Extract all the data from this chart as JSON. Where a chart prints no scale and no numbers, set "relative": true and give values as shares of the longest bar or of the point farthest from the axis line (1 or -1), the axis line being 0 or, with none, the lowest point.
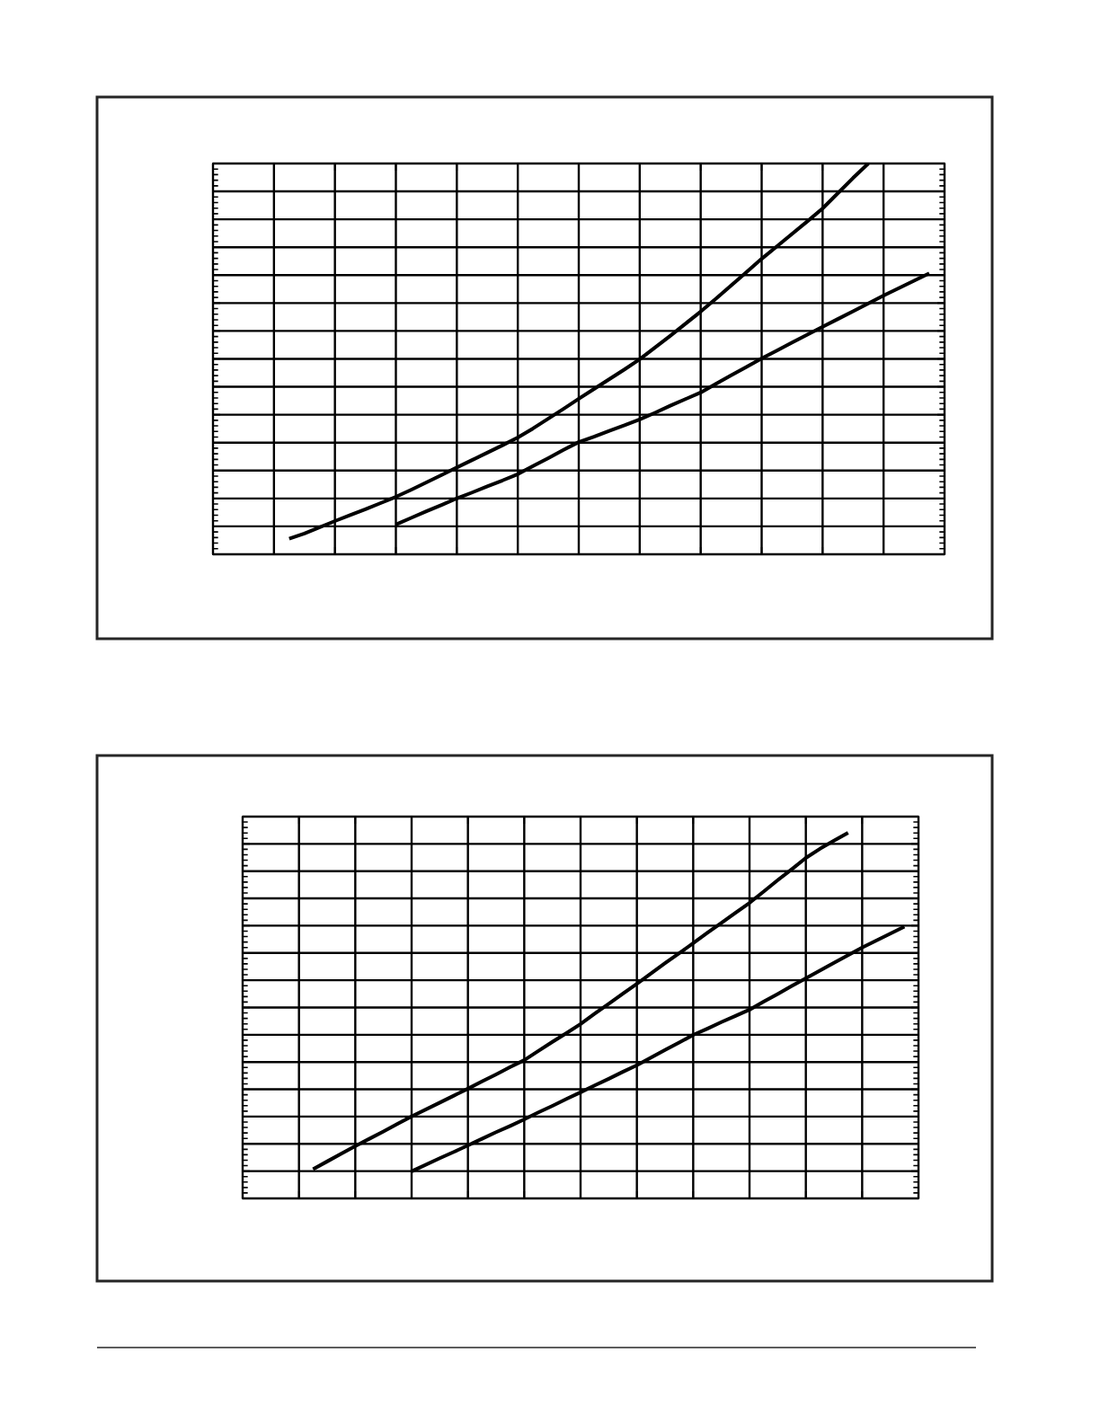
{
  "chart_data": [
    {
      "type": "line",
      "relative": true,
      "grid": true,
      "categories": [
        null,
        null,
        null,
        null,
        null,
        null,
        null,
        null,
        null,
        null,
        null,
        null,
        null,
        null,
        null,
        null,
        null,
        null,
        null,
        null,
        null,
        null,
        null,
        null,
        null,
        null,
        null,
        null,
        null,
        null,
        null,
        null,
        null,
        null,
        null,
        null,
        null,
        null,
        null,
        null,
        null,
        null,
        null,
        null,
        null,
        null,
        null,
        null,
        null
      ],
      "series": [
        {
          "color": "#000000",
          "values": [
            null,
            null,
            null,
            null,
            null,
            0.04,
            0.053,
            0.069,
            0.085,
            0.1,
            0.115,
            0.131,
            0.147,
            0.165,
            0.184,
            0.203,
            0.222,
            0.241,
            0.26,
            0.279,
            0.299,
            0.322,
            0.347,
            0.372,
            0.398,
            0.423,
            0.448,
            0.473,
            0.499,
            0.529,
            0.559,
            0.59,
            0.621,
            0.654,
            0.688,
            0.722,
            0.756,
            0.788,
            0.82,
            0.852,
            0.885,
            0.924,
            0.963,
            1.0,
            null,
            null,
            null,
            null,
            null
          ]
        },
        {
          "color": "#000000",
          "values": [
            null,
            null,
            null,
            null,
            null,
            null,
            null,
            null,
            null,
            null,
            null,
            null,
            0.076,
            0.093,
            0.11,
            0.126,
            0.143,
            0.158,
            0.174,
            0.189,
            0.205,
            0.226,
            0.246,
            0.267,
            0.287,
            0.301,
            0.316,
            0.33,
            0.345,
            0.362,
            0.38,
            0.397,
            0.414,
            0.436,
            0.458,
            0.479,
            0.501,
            0.521,
            0.542,
            0.562,
            0.582,
            0.602,
            0.622,
            0.642,
            0.662,
            0.681,
            0.7,
            0.719,
            null
          ]
        }
      ]
    },
    {
      "type": "line",
      "relative": true,
      "grid": true,
      "categories": [
        null,
        null,
        null,
        null,
        null,
        null,
        null,
        null,
        null,
        null,
        null,
        null,
        null,
        null,
        null,
        null,
        null,
        null,
        null,
        null,
        null,
        null,
        null,
        null,
        null,
        null,
        null,
        null,
        null,
        null,
        null,
        null,
        null,
        null,
        null,
        null,
        null,
        null,
        null,
        null,
        null,
        null,
        null,
        null,
        null,
        null,
        null,
        null,
        null
      ],
      "series": [
        {
          "color": "#000000",
          "values": [
            null,
            null,
            null,
            null,
            null,
            0.08,
            0.101,
            0.122,
            0.143,
            0.163,
            0.183,
            0.204,
            0.224,
            0.243,
            0.262,
            0.281,
            0.3,
            0.32,
            0.339,
            0.359,
            0.378,
            0.403,
            0.428,
            0.452,
            0.477,
            0.505,
            0.532,
            0.56,
            0.587,
            0.615,
            0.643,
            0.67,
            0.698,
            0.726,
            0.753,
            0.781,
            0.808,
            0.839,
            0.87,
            0.9,
            0.931,
            0.956,
            0.978,
            1.0,
            null,
            null,
            null,
            null,
            null
          ]
        },
        {
          "color": "#000000",
          "values": [
            null,
            null,
            null,
            null,
            null,
            null,
            null,
            null,
            null,
            null,
            null,
            null,
            0.074,
            0.092,
            0.11,
            0.127,
            0.145,
            0.163,
            0.181,
            0.198,
            0.216,
            0.235,
            0.253,
            0.272,
            0.29,
            0.309,
            0.327,
            0.346,
            0.364,
            0.385,
            0.406,
            0.426,
            0.447,
            0.464,
            0.482,
            0.499,
            0.516,
            0.538,
            0.559,
            0.581,
            0.602,
            0.623,
            0.644,
            0.665,
            0.686,
            0.705,
            0.724,
            0.743,
            null
          ]
        }
      ]
    }
  ]
}
